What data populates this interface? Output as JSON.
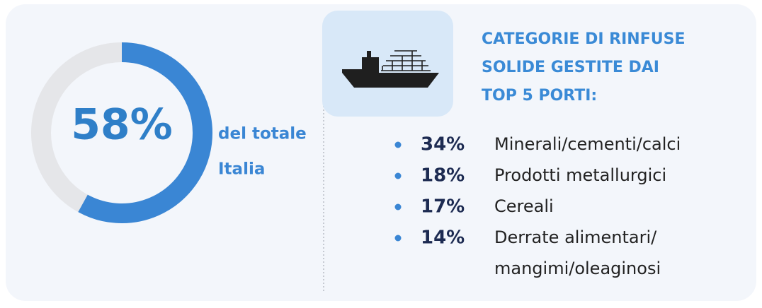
{
  "gauge": {
    "value": 58,
    "value_label": "58%",
    "caption": [
      "del totale",
      "Italia"
    ]
  },
  "list": {
    "title": [
      "CATEGORIE DI RINFUSE",
      "SOLIDE GESTITE DAI",
      "TOP 5 PORTI:"
    ],
    "items": [
      {
        "percent": "34%",
        "text": [
          "Minerali/cementi/calci"
        ]
      },
      {
        "percent": "18%",
        "text": [
          "Prodotti metallurgici"
        ]
      },
      {
        "percent": "17%",
        "text": [
          "Cereali"
        ]
      },
      {
        "percent": "14%",
        "text": [
          "Derrate alimentari/",
          "mangimi/oleaginosi"
        ]
      }
    ]
  }
}
